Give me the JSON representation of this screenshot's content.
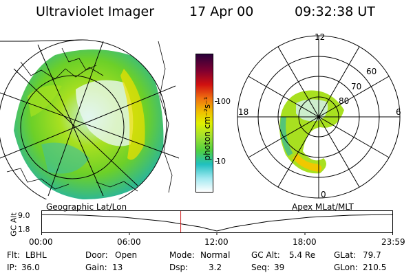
{
  "header": {
    "title": "Ultraviolet Imager",
    "date": "17 Apr 00",
    "time": "09:32:38 UT"
  },
  "colorbar": {
    "unit_label": "photon cm⁻²s⁻¹",
    "ticks": [
      "100",
      "10"
    ]
  },
  "left_panel": {
    "caption": "Geographic Lat/Lon"
  },
  "right_panel": {
    "caption": "Apex  MLat/MLT",
    "mlt_labels": [
      "12",
      "18",
      "6",
      "0"
    ],
    "lat_labels": [
      "60",
      "70",
      "80"
    ]
  },
  "altitude_plot": {
    "ylabel": "GC Alt",
    "yticks": [
      "9.0",
      "1.8"
    ],
    "xticks": [
      "00:00",
      "06:00",
      "12:00",
      "18:00",
      "23:59"
    ],
    "current_time_fraction": 0.396
  },
  "info": {
    "row1": [
      {
        "label": "Flt:",
        "value": "LBHL"
      },
      {
        "label": "Door:",
        "value": "Open"
      },
      {
        "label": "Mode:",
        "value": "Normal"
      },
      {
        "label": "GC Alt:",
        "value": "5.4 Re"
      },
      {
        "label": "GLat:",
        "value": "79.7"
      }
    ],
    "row2": [
      {
        "label": "IP:",
        "value": "36.0"
      },
      {
        "label": "Gain:",
        "value": "13"
      },
      {
        "label": "Dsp:",
        "value": "3.2"
      },
      {
        "label": "Seq:",
        "value": "39"
      },
      {
        "label": "GLon:",
        "value": "210.5"
      }
    ]
  }
}
